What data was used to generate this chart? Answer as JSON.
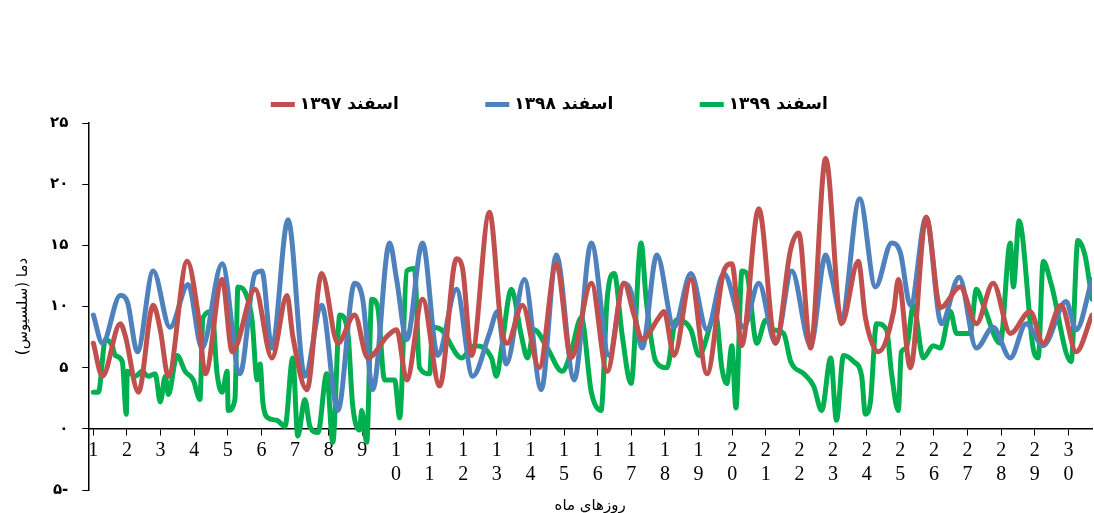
{
  "chart_data": {
    "type": "line",
    "xlabel": "روزهای ماه",
    "ylabel": "دما (سلسیوس)",
    "xlim": [
      0.85,
      30.7
    ],
    "xticks": [
      1,
      2,
      3,
      4,
      5,
      6,
      7,
      8,
      9,
      10,
      11,
      12,
      13,
      14,
      15,
      16,
      17,
      18,
      19,
      20,
      21,
      22,
      23,
      24,
      25,
      26,
      27,
      28,
      29,
      30
    ],
    "ylim": [
      -5,
      25
    ],
    "yticks": [
      {
        "value": -5,
        "label": "۵-"
      },
      {
        "value": 0,
        "label": "۰"
      },
      {
        "value": 5,
        "label": "۵"
      },
      {
        "value": 10,
        "label": "۱۰"
      },
      {
        "value": 15,
        "label": "۱۵"
      },
      {
        "value": 20,
        "label": "۲۰"
      },
      {
        "value": 25,
        "label": "۲۵"
      }
    ],
    "grid": false,
    "legend": "top",
    "marker": "none",
    "line_style": "solid",
    "series": [
      {
        "name": "اسفند ۱۳۹۷",
        "color": "#c0504d",
        "x": [
          1,
          1.27,
          1.8,
          1.95,
          2.34,
          2.78,
          2.99,
          3.23,
          3.79,
          4.12,
          4.33,
          4.83,
          5.13,
          5.81,
          6.31,
          6.76,
          6.93,
          7.35,
          7.79,
          8.27,
          8.77,
          9.16,
          9.75,
          10.02,
          10.32,
          10.79,
          11.3,
          11.8,
          11.98,
          12.25,
          12.78,
          13.14,
          13.31,
          13.76,
          14.26,
          14.77,
          15.21,
          15.81,
          16.28,
          16.78,
          17.08,
          17.32,
          17.82,
          17.97,
          18.27,
          18.77,
          19.25,
          19.75,
          19.99,
          20.28,
          20.79,
          21.29,
          21.74,
          21.98,
          22.33,
          22.78,
          23.25,
          23.75,
          23.96,
          24.35,
          24.8,
          24.94,
          25.3,
          25.77,
          26.19,
          26.78,
          27.26,
          27.76,
          28.27,
          28.86,
          29.25,
          29.78,
          30.23,
          30.7
        ],
        "values": [
          7,
          4.3,
          8.6,
          7.6,
          3,
          10.1,
          8.1,
          4.3,
          13.7,
          9.3,
          4.5,
          12.2,
          6.3,
          11.4,
          5.8,
          10.9,
          7.6,
          3.2,
          12.7,
          7,
          9.3,
          5.8,
          7.6,
          8.1,
          4,
          10.6,
          3.5,
          13.9,
          13.1,
          6,
          17.7,
          8.1,
          7,
          10.1,
          5,
          13.5,
          5.8,
          11.9,
          4.7,
          11.9,
          9.3,
          7.3,
          9.1,
          9.6,
          6,
          12.2,
          4.5,
          12.9,
          13.5,
          6.8,
          18,
          7,
          14.7,
          16,
          6.6,
          22.1,
          8.6,
          13.7,
          9.1,
          6.3,
          9.6,
          12.2,
          5,
          17.3,
          9.9,
          11.6,
          8.6,
          11.9,
          7.8,
          9.6,
          7,
          10.1,
          6.3,
          9.3
        ]
      },
      {
        "name": "اسفند ۱۳۹۸",
        "color": "#4f81bd",
        "x": [
          1,
          1.27,
          1.8,
          2.01,
          2.31,
          2.78,
          3.28,
          3.82,
          4.23,
          4.83,
          5.36,
          5.81,
          6.01,
          6.31,
          6.79,
          7.29,
          7.79,
          8.27,
          8.77,
          9.01,
          9.31,
          9.81,
          10.02,
          10.32,
          10.79,
          11.24,
          11.8,
          12.28,
          12.78,
          13.02,
          13.28,
          13.82,
          14.32,
          14.77,
          15.3,
          15.81,
          16.34,
          16.78,
          16.99,
          17.32,
          17.76,
          18.27,
          18.77,
          19.25,
          19.75,
          20.34,
          20.79,
          21.29,
          21.77,
          22.33,
          22.78,
          22.96,
          23.25,
          23.79,
          24.26,
          24.74,
          25,
          25.3,
          25.77,
          26.22,
          26.75,
          27.26,
          27.76,
          28.27,
          28.74,
          29.25,
          29.93,
          30.23,
          30.7
        ],
        "values": [
          9.3,
          7,
          10.9,
          10.4,
          6.3,
          12.9,
          8.3,
          11.8,
          6.6,
          13.5,
          4.5,
          12.7,
          12.9,
          6.6,
          17.1,
          4.3,
          10.1,
          1.5,
          11.9,
          10.6,
          3.2,
          15.2,
          12.2,
          7.3,
          15.2,
          6,
          11.4,
          4.3,
          7.8,
          9.6,
          5.3,
          12.2,
          3.2,
          14.2,
          4,
          15.2,
          6,
          11.9,
          11.2,
          6.6,
          14.2,
          8.3,
          12.7,
          8.1,
          12.7,
          8.3,
          11.9,
          7,
          12.9,
          6.8,
          14.2,
          12.4,
          9.1,
          18.8,
          11.6,
          15.2,
          14.4,
          10.1,
          17.3,
          8.6,
          12.4,
          6.6,
          8.3,
          5.8,
          8.6,
          6.8,
          10.4,
          8.1,
          12.2
        ]
      },
      {
        "name": "اسفند ۱۳۹۹",
        "color": "#00b050",
        "x": [
          1,
          1.15,
          1.36,
          1.56,
          1.65,
          1.86,
          1.98,
          2.01,
          2.25,
          2.45,
          2.63,
          2.84,
          2.99,
          3.14,
          3.23,
          3.49,
          3.73,
          3.97,
          4.17,
          4.26,
          4.53,
          4.68,
          4.83,
          4.98,
          5.01,
          5.21,
          5.3,
          5.51,
          5.72,
          5.87,
          5.96,
          6.04,
          6.19,
          6.46,
          6.7,
          6.93,
          7.08,
          7.29,
          7.44,
          7.68,
          7.94,
          8.12,
          8.33,
          8.57,
          8.71,
          8.92,
          8.98,
          9.13,
          9.28,
          9.46,
          9.66,
          9.96,
          10.11,
          10.32,
          10.55,
          10.7,
          11,
          11.09,
          11.35,
          11.95,
          12.33,
          12.84,
          12.99,
          13.14,
          13.43,
          13.73,
          13.91,
          14.11,
          14.5,
          14.94,
          15.21,
          15.51,
          15.81,
          16.1,
          16.28,
          16.49,
          16.73,
          16.99,
          17.29,
          17.44,
          17.73,
          18.06,
          18.33,
          18.77,
          19.01,
          19.51,
          19.69,
          19.84,
          19.99,
          20.11,
          20.29,
          20.43,
          20.73,
          21,
          21.24,
          21.53,
          21.74,
          22.13,
          22.42,
          22.66,
          22.93,
          23.1,
          23.31,
          23.61,
          23.85,
          23.96,
          24.11,
          24.29,
          24.59,
          24.74,
          24.94,
          25.03,
          25.18,
          25.39,
          25.68,
          25.98,
          26.19,
          26.49,
          26.67,
          27.08,
          27.26,
          27.47,
          27.97,
          28.27,
          28.36,
          28.53,
          28.95,
          29.1,
          29.25,
          29.48,
          30.08,
          30.28,
          30.49,
          30.7
        ],
        "values": [
          3,
          3,
          7.3,
          6.8,
          6,
          5.5,
          1.2,
          4.7,
          4.3,
          4.7,
          4.3,
          4.5,
          2.2,
          4.3,
          2.8,
          6,
          4.7,
          4,
          2.4,
          9.1,
          9.6,
          4.5,
          3,
          4.7,
          1.5,
          2.4,
          11.6,
          11.2,
          8.9,
          4,
          5.3,
          2.2,
          0.9,
          0.7,
          0.2,
          5.8,
          -0.6,
          2.4,
          0.2,
          -0.3,
          4.5,
          -1.1,
          9.3,
          7.8,
          2,
          -0.1,
          1.5,
          -1.1,
          10.6,
          9.9,
          4,
          4,
          0.9,
          12.9,
          13.1,
          5,
          4.5,
          8.3,
          8.1,
          5.8,
          6.8,
          5.8,
          4.3,
          6.6,
          11.4,
          7.6,
          5.8,
          8.1,
          6.6,
          4.7,
          6.3,
          9.1,
          3,
          1.5,
          10.6,
          12.7,
          7.6,
          3.7,
          15.2,
          10.6,
          5.5,
          5,
          8.9,
          8.1,
          6,
          9.3,
          5,
          3.7,
          6.8,
          1.7,
          12.9,
          12.7,
          7,
          8.9,
          8.1,
          7.8,
          5.5,
          4.5,
          3.5,
          1.5,
          5.8,
          0.7,
          6,
          5.5,
          4.3,
          1.2,
          2.2,
          8.6,
          8.1,
          4.5,
          1.5,
          6.3,
          6.6,
          10.1,
          5.8,
          6.8,
          6.6,
          9.6,
          7.8,
          7.8,
          11.4,
          10.1,
          7,
          15.2,
          11.6,
          17,
          6.6,
          5.8,
          13.7,
          11.9,
          5.5,
          15.4,
          14.2,
          10.6
        ]
      }
    ]
  }
}
